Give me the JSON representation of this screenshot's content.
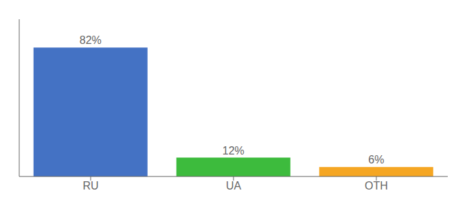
{
  "chart_data": {
    "type": "bar",
    "categories": [
      "RU",
      "UA",
      "OTH"
    ],
    "values": [
      82,
      12,
      6
    ],
    "value_labels": [
      "82%",
      "12%",
      "6%"
    ],
    "colors": [
      "#4472c4",
      "#3dbb3d",
      "#f5a623"
    ],
    "ylim": [
      0,
      100
    ],
    "grid": false,
    "data_labels": true,
    "tick_labels": "x"
  }
}
